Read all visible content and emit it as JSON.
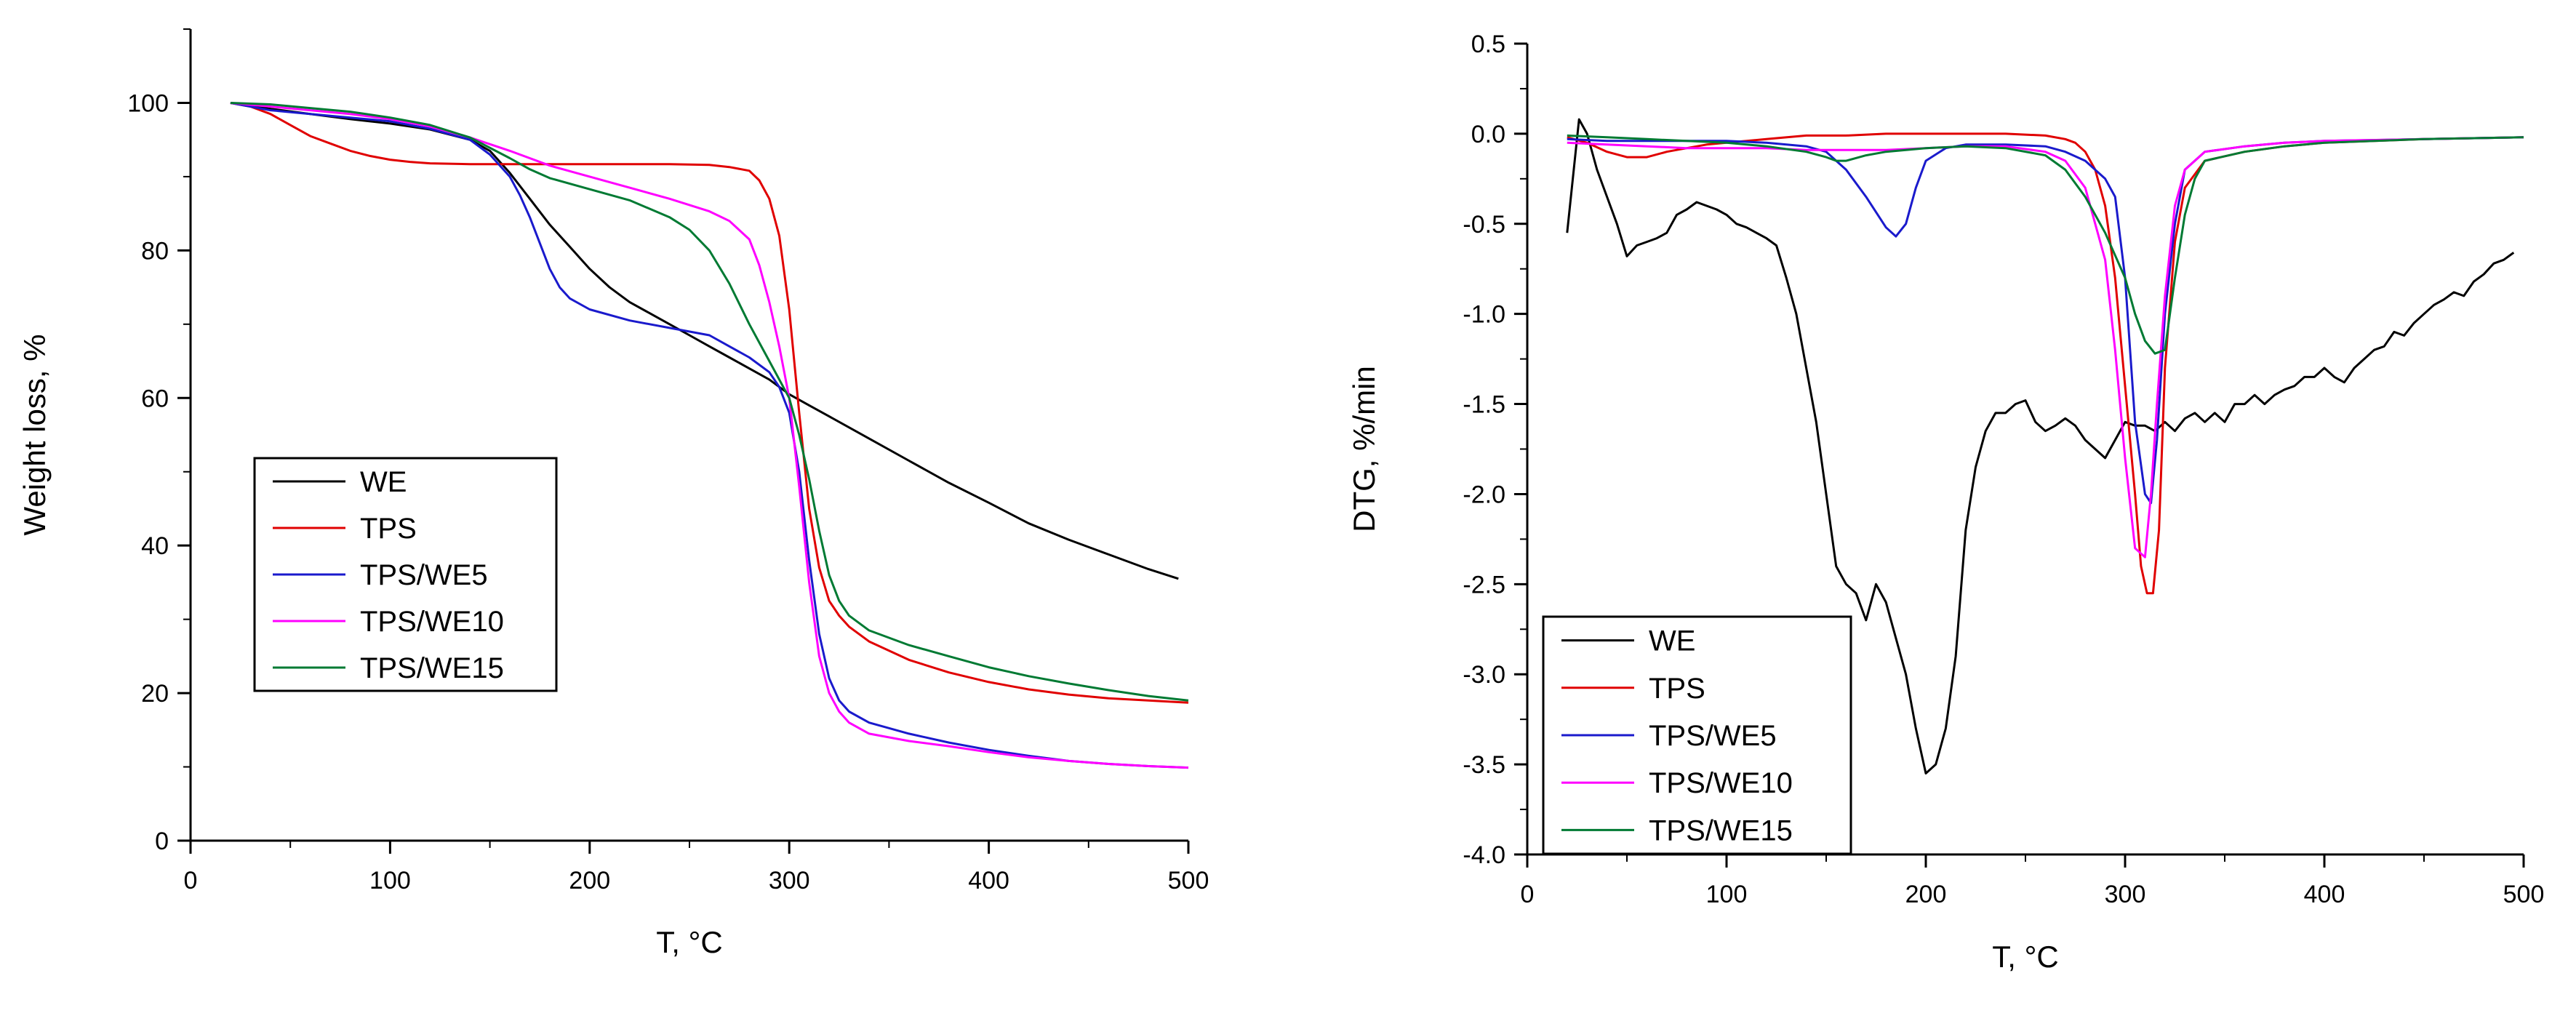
{
  "chart_data": [
    {
      "type": "line",
      "id": "tga",
      "xlabel": "T, °C",
      "ylabel": "Weight loss, %",
      "xlim": [
        0,
        500
      ],
      "ylim": [
        0,
        110
      ],
      "xticks": [
        0,
        100,
        200,
        300,
        400,
        500
      ],
      "yticks": [
        0,
        20,
        40,
        60,
        80,
        100
      ],
      "legend_position": "lower-left",
      "series": [
        {
          "name": "WE",
          "color": "#000000",
          "x": [
            20,
            40,
            60,
            80,
            100,
            120,
            140,
            150,
            160,
            170,
            180,
            190,
            200,
            210,
            220,
            230,
            240,
            250,
            260,
            270,
            280,
            290,
            300,
            310,
            320,
            340,
            360,
            380,
            400,
            420,
            440,
            460,
            480,
            495
          ],
          "y": [
            100,
            99.2,
            98.5,
            97.8,
            97.2,
            96.4,
            95,
            93.5,
            90.5,
            87,
            83.5,
            80.5,
            77.5,
            75,
            73,
            71.5,
            70,
            68.5,
            67,
            65.5,
            64,
            62.5,
            60.5,
            59,
            57.5,
            54.5,
            51.5,
            48.5,
            45.8,
            43,
            40.8,
            38.8,
            36.8,
            35.5
          ]
        },
        {
          "name": "TPS",
          "color": "#e00000",
          "x": [
            20,
            30,
            40,
            50,
            60,
            70,
            80,
            90,
            100,
            110,
            120,
            140,
            160,
            180,
            200,
            220,
            240,
            260,
            270,
            280,
            285,
            290,
            295,
            300,
            305,
            310,
            315,
            320,
            325,
            330,
            340,
            360,
            380,
            400,
            420,
            440,
            460,
            480,
            500
          ],
          "y": [
            100,
            99.5,
            98.5,
            97,
            95.5,
            94.5,
            93.5,
            92.8,
            92.3,
            92,
            91.8,
            91.7,
            91.7,
            91.7,
            91.7,
            91.7,
            91.7,
            91.6,
            91.3,
            90.8,
            89.5,
            87,
            82,
            72,
            58,
            45,
            37,
            32.5,
            30.5,
            29,
            27,
            24.5,
            22.8,
            21.5,
            20.5,
            19.8,
            19.3,
            19,
            18.7
          ]
        },
        {
          "name": "TPS/WE5",
          "color": "#1a1acc",
          "x": [
            20,
            40,
            60,
            80,
            100,
            120,
            140,
            150,
            160,
            165,
            170,
            175,
            180,
            185,
            190,
            200,
            220,
            240,
            260,
            270,
            280,
            290,
            295,
            300,
            305,
            310,
            315,
            320,
            325,
            330,
            340,
            360,
            380,
            400,
            420,
            440,
            460,
            480,
            500
          ],
          "y": [
            100,
            99,
            98.5,
            98,
            97.5,
            96.5,
            95,
            93,
            90,
            87.5,
            84.5,
            81,
            77.5,
            75,
            73.5,
            72,
            70.5,
            69.5,
            68.5,
            67,
            65.5,
            63.5,
            61.5,
            58,
            50,
            38,
            28,
            22,
            19,
            17.5,
            16,
            14.5,
            13.3,
            12.3,
            11.5,
            10.8,
            10.4,
            10.1,
            9.9
          ]
        },
        {
          "name": "TPS/WE10",
          "color": "#ff00ff",
          "x": [
            20,
            40,
            60,
            80,
            100,
            120,
            140,
            160,
            180,
            200,
            220,
            240,
            260,
            270,
            280,
            285,
            290,
            295,
            300,
            305,
            310,
            315,
            320,
            325,
            330,
            340,
            360,
            380,
            400,
            420,
            440,
            460,
            480,
            500
          ],
          "y": [
            100,
            99.5,
            99,
            98.5,
            97.8,
            96.8,
            95.3,
            93.5,
            91.5,
            90,
            88.5,
            87,
            85.3,
            84,
            81.5,
            78,
            73,
            67,
            60,
            48,
            35,
            25,
            20,
            17.5,
            16,
            14.5,
            13.5,
            12.8,
            12,
            11.3,
            10.8,
            10.4,
            10.1,
            9.9
          ]
        },
        {
          "name": "TPS/WE15",
          "color": "#007a33",
          "x": [
            20,
            40,
            60,
            80,
            100,
            120,
            140,
            160,
            170,
            180,
            200,
            220,
            240,
            250,
            260,
            270,
            280,
            290,
            300,
            305,
            310,
            315,
            320,
            325,
            330,
            340,
            360,
            380,
            400,
            420,
            440,
            460,
            480,
            500
          ],
          "y": [
            100,
            99.8,
            99.3,
            98.8,
            98,
            97,
            95.3,
            92.5,
            91,
            89.8,
            88.3,
            86.8,
            84.5,
            82.8,
            80,
            75.5,
            70,
            65,
            60,
            55,
            49,
            42,
            36,
            32.5,
            30.5,
            28.5,
            26.5,
            25,
            23.5,
            22.3,
            21.3,
            20.4,
            19.6,
            19
          ]
        }
      ],
      "legend": [
        "WE",
        "TPS",
        "TPS/WE5",
        "TPS/WE10",
        "TPS/WE15"
      ]
    },
    {
      "type": "line",
      "id": "dtg",
      "xlabel": "T, °C",
      "ylabel": "DTG, %/min",
      "xlim": [
        0,
        500
      ],
      "ylim": [
        -4.0,
        0.5
      ],
      "xticks": [
        0,
        100,
        200,
        300,
        400,
        500
      ],
      "yticks": [
        -4.0,
        -3.5,
        -3.0,
        -2.5,
        -2.0,
        -1.5,
        -1.0,
        -0.5,
        0.0,
        0.5
      ],
      "ytick_labels": [
        "-4.0",
        "-3.5",
        "-3.0",
        "-2.5",
        "-2.0",
        "-1.5",
        "-1.0",
        "-0.5",
        "0.0",
        "0.5"
      ],
      "legend_position": "lower-left",
      "series": [
        {
          "name": "WE",
          "color": "#000000",
          "x": [
            20,
            26,
            30,
            35,
            40,
            45,
            50,
            55,
            60,
            65,
            70,
            75,
            80,
            85,
            90,
            95,
            100,
            105,
            110,
            115,
            120,
            125,
            130,
            135,
            140,
            145,
            150,
            155,
            160,
            165,
            170,
            175,
            180,
            185,
            190,
            195,
            200,
            205,
            210,
            215,
            220,
            225,
            230,
            235,
            240,
            245,
            250,
            255,
            260,
            265,
            270,
            275,
            280,
            285,
            290,
            295,
            300,
            305,
            310,
            315,
            320,
            325,
            330,
            335,
            340,
            345,
            350,
            355,
            360,
            365,
            370,
            375,
            380,
            385,
            390,
            395,
            400,
            405,
            410,
            415,
            420,
            425,
            430,
            435,
            440,
            445,
            450,
            455,
            460,
            465,
            470,
            475,
            480,
            485,
            490,
            495
          ],
          "y": [
            -0.55,
            0.08,
            0.0,
            -0.2,
            -0.35,
            -0.5,
            -0.68,
            -0.62,
            -0.6,
            -0.58,
            -0.55,
            -0.45,
            -0.42,
            -0.38,
            -0.4,
            -0.42,
            -0.45,
            -0.5,
            -0.52,
            -0.55,
            -0.58,
            -0.62,
            -0.8,
            -1.0,
            -1.3,
            -1.6,
            -2.0,
            -2.4,
            -2.5,
            -2.55,
            -2.7,
            -2.5,
            -2.6,
            -2.8,
            -3.0,
            -3.3,
            -3.55,
            -3.5,
            -3.3,
            -2.9,
            -2.2,
            -1.85,
            -1.65,
            -1.55,
            -1.55,
            -1.5,
            -1.48,
            -1.6,
            -1.65,
            -1.62,
            -1.58,
            -1.62,
            -1.7,
            -1.75,
            -1.8,
            -1.7,
            -1.6,
            -1.62,
            -1.62,
            -1.65,
            -1.6,
            -1.65,
            -1.58,
            -1.55,
            -1.6,
            -1.55,
            -1.6,
            -1.5,
            -1.5,
            -1.45,
            -1.5,
            -1.45,
            -1.42,
            -1.4,
            -1.35,
            -1.35,
            -1.3,
            -1.35,
            -1.38,
            -1.3,
            -1.25,
            -1.2,
            -1.18,
            -1.1,
            -1.12,
            -1.05,
            -1.0,
            -0.95,
            -0.92,
            -0.88,
            -0.9,
            -0.82,
            -0.78,
            -0.72,
            -0.7,
            -0.66
          ]
        },
        {
          "name": "TPS",
          "color": "#e00000",
          "x": [
            20,
            30,
            40,
            50,
            60,
            70,
            80,
            90,
            100,
            120,
            140,
            160,
            180,
            200,
            220,
            240,
            260,
            270,
            275,
            280,
            285,
            290,
            295,
            300,
            305,
            308,
            311,
            314,
            317,
            320,
            325,
            330,
            340,
            360,
            380,
            400,
            450,
            500
          ],
          "y": [
            -0.02,
            -0.05,
            -0.1,
            -0.13,
            -0.13,
            -0.1,
            -0.08,
            -0.06,
            -0.05,
            -0.03,
            -0.01,
            -0.01,
            0.0,
            0.0,
            0.0,
            0.0,
            -0.01,
            -0.03,
            -0.05,
            -0.1,
            -0.2,
            -0.4,
            -0.8,
            -1.4,
            -2.0,
            -2.4,
            -2.55,
            -2.55,
            -2.2,
            -1.3,
            -0.6,
            -0.3,
            -0.15,
            -0.1,
            -0.07,
            -0.05,
            -0.03,
            -0.02
          ]
        },
        {
          "name": "TPS/WE5",
          "color": "#1a1acc",
          "x": [
            20,
            40,
            60,
            80,
            100,
            120,
            140,
            150,
            160,
            170,
            180,
            185,
            190,
            195,
            200,
            210,
            220,
            240,
            260,
            270,
            280,
            290,
            295,
            300,
            305,
            310,
            313,
            316,
            320,
            325,
            330,
            340,
            360,
            380,
            400,
            450,
            500
          ],
          "y": [
            -0.03,
            -0.04,
            -0.04,
            -0.04,
            -0.04,
            -0.05,
            -0.07,
            -0.1,
            -0.2,
            -0.35,
            -0.52,
            -0.57,
            -0.5,
            -0.3,
            -0.15,
            -0.08,
            -0.06,
            -0.06,
            -0.07,
            -0.1,
            -0.15,
            -0.25,
            -0.35,
            -0.8,
            -1.6,
            -2.0,
            -2.05,
            -1.7,
            -1.0,
            -0.5,
            -0.2,
            -0.1,
            -0.07,
            -0.05,
            -0.04,
            -0.03,
            -0.02
          ]
        },
        {
          "name": "TPS/WE10",
          "color": "#ff00ff",
          "x": [
            20,
            40,
            60,
            80,
            100,
            120,
            140,
            160,
            180,
            200,
            220,
            240,
            260,
            270,
            280,
            290,
            295,
            300,
            305,
            310,
            313,
            316,
            320,
            325,
            330,
            340,
            360,
            380,
            400,
            450,
            500
          ],
          "y": [
            -0.05,
            -0.06,
            -0.07,
            -0.08,
            -0.08,
            -0.08,
            -0.09,
            -0.09,
            -0.09,
            -0.08,
            -0.07,
            -0.07,
            -0.1,
            -0.15,
            -0.3,
            -0.7,
            -1.2,
            -1.8,
            -2.3,
            -2.35,
            -2.0,
            -1.5,
            -0.9,
            -0.4,
            -0.2,
            -0.1,
            -0.07,
            -0.05,
            -0.04,
            -0.03,
            -0.02
          ]
        },
        {
          "name": "TPS/WE15",
          "color": "#007a33",
          "x": [
            20,
            40,
            60,
            80,
            100,
            120,
            140,
            150,
            155,
            160,
            170,
            180,
            200,
            220,
            240,
            260,
            270,
            280,
            290,
            300,
            305,
            310,
            315,
            320,
            325,
            330,
            335,
            340,
            360,
            380,
            400,
            450,
            500
          ],
          "y": [
            -0.01,
            -0.02,
            -0.03,
            -0.04,
            -0.05,
            -0.07,
            -0.1,
            -0.13,
            -0.15,
            -0.15,
            -0.12,
            -0.1,
            -0.08,
            -0.07,
            -0.08,
            -0.12,
            -0.2,
            -0.35,
            -0.55,
            -0.8,
            -1.0,
            -1.15,
            -1.22,
            -1.2,
            -0.8,
            -0.45,
            -0.25,
            -0.15,
            -0.1,
            -0.07,
            -0.05,
            -0.03,
            -0.02
          ]
        }
      ],
      "legend": [
        "WE",
        "TPS",
        "TPS/WE5",
        "TPS/WE10",
        "TPS/WE15"
      ]
    }
  ]
}
